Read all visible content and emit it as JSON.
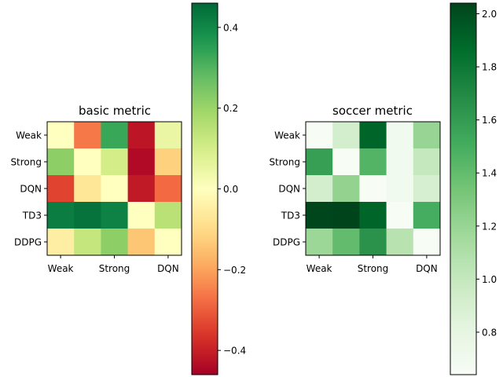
{
  "chart_data": [
    {
      "type": "heatmap",
      "title": "basic metric",
      "row_labels": [
        "Weak",
        "Strong",
        "DQN",
        "TD3",
        "DDPG"
      ],
      "col_tick_labels": [
        "Weak",
        "Strong",
        "DQN"
      ],
      "col_tick_indices": [
        0,
        2,
        4
      ],
      "colormap": "RdYlGn",
      "vmin": -0.46,
      "vmax": 0.46,
      "colorbar_ticks": [
        0.4,
        0.2,
        0.0,
        -0.2,
        -0.4
      ],
      "colorbar_tick_labels": [
        "0.4",
        "0.2",
        "0.0",
        "−0.2",
        "−0.4"
      ],
      "values": [
        [
          0.0,
          -0.26,
          0.33,
          -0.42,
          0.05
        ],
        [
          0.22,
          0.0,
          0.1,
          -0.44,
          -0.12
        ],
        [
          -0.34,
          -0.07,
          0.0,
          -0.41,
          -0.28
        ],
        [
          0.42,
          0.44,
          0.41,
          0.0,
          0.15
        ],
        [
          -0.05,
          0.13,
          0.22,
          -0.14,
          0.0
        ]
      ]
    },
    {
      "type": "heatmap",
      "title": "soccer metric",
      "row_labels": [
        "Weak",
        "Strong",
        "DQN",
        "TD3",
        "DDPG"
      ],
      "col_tick_labels": [
        "Weak",
        "Strong",
        "DQN"
      ],
      "col_tick_indices": [
        0,
        2,
        4
      ],
      "colormap": "Greens",
      "vmin": 0.64,
      "vmax": 2.04,
      "colorbar_ticks": [
        2.0,
        1.8,
        1.6,
        1.4,
        1.2,
        1.0,
        0.8
      ],
      "colorbar_tick_labels": [
        "2.0",
        "1.8",
        "1.6",
        "1.4",
        "1.2",
        "1.0",
        "0.8"
      ],
      "values": [
        [
          0.64,
          0.92,
          1.9,
          0.7,
          1.2
        ],
        [
          1.58,
          0.64,
          1.45,
          0.7,
          1.0
        ],
        [
          0.92,
          1.22,
          0.64,
          0.7,
          0.9
        ],
        [
          2.03,
          2.04,
          1.9,
          0.64,
          1.5
        ],
        [
          1.18,
          1.4,
          1.65,
          1.06,
          0.64
        ]
      ]
    }
  ]
}
